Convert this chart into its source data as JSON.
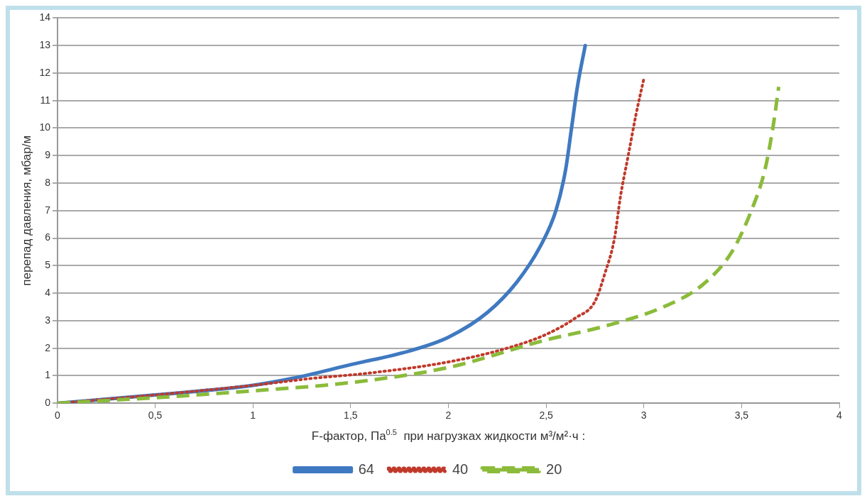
{
  "chart_data": {
    "type": "line",
    "xlabel": "F-фактор, Па$^{0.5}$  при нагрузках жидкости м³/м²·ч :",
    "ylabel": "перепад давления, мбар/м",
    "xlim": [
      0,
      4
    ],
    "xticks": [
      0,
      {
        "value": 0.5,
        "label": "0,5"
      },
      1,
      {
        "value": 1.5,
        "label": "1,5"
      },
      2,
      {
        "value": 2.5,
        "label": "2,5"
      },
      3,
      {
        "value": 3.5,
        "label": "3,5"
      },
      4
    ],
    "ylim": [
      0,
      14
    ],
    "yticks": [
      0,
      1,
      2,
      3,
      4,
      5,
      6,
      7,
      8,
      9,
      10,
      11,
      12,
      13,
      14
    ],
    "grid": "y",
    "legend": "bottom",
    "marker": "none",
    "series": [
      {
        "name": "64",
        "color": "#3f79c1",
        "line_style": "solid",
        "x": [
          0,
          0.5,
          1,
          1.2,
          1.5,
          1.8,
          2,
          2.2,
          2.35,
          2.47,
          2.55,
          2.6,
          2.63,
          2.66,
          2.7
        ],
        "values": [
          0,
          0.3,
          0.65,
          0.9,
          1.4,
          1.9,
          2.4,
          3.3,
          4.4,
          5.7,
          7,
          8.5,
          10,
          11.5,
          13
        ]
      },
      {
        "name": "40",
        "color": "#c0392b",
        "line_style": "dotted",
        "x": [
          0,
          0.5,
          1,
          1.3,
          1.6,
          2,
          2.3,
          2.5,
          2.65,
          2.75,
          2.8,
          2.85,
          2.88,
          2.92,
          2.96,
          3
        ],
        "values": [
          0,
          0.3,
          0.65,
          0.9,
          1.1,
          1.5,
          2,
          2.5,
          3.1,
          3.7,
          4.7,
          6,
          7.5,
          9,
          10.5,
          11.8
        ]
      },
      {
        "name": "20",
        "color": "#8bbb3a",
        "line_style": "dashed",
        "x": [
          0,
          0.5,
          1,
          1.5,
          2,
          2.5,
          2.8,
          3.1,
          3.3,
          3.45,
          3.55,
          3.62,
          3.66,
          3.69
        ],
        "values": [
          0,
          0.2,
          0.45,
          0.75,
          1.3,
          2.3,
          2.8,
          3.5,
          4.3,
          5.5,
          7,
          8.5,
          10,
          11.5
        ]
      }
    ]
  }
}
